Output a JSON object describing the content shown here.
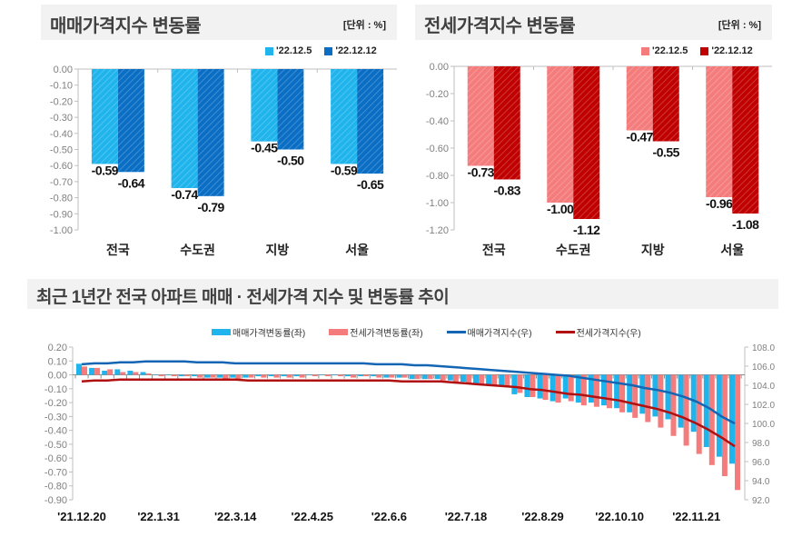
{
  "sale_panel": {
    "title": "매매가격지수 변동률",
    "unit": "[단위 : %]"
  },
  "jeonse_panel": {
    "title": "전세가격지수 변동률",
    "unit": "[단위 : %]"
  },
  "trend_panel": {
    "title": "최근 1년간 전국 아파트 매매 · 전세가격 지수 및 변동률 추이"
  },
  "colors": {
    "sale_light": "#1fb4ec",
    "sale_dark": "#0a6ec4",
    "jeonse_light": "#f47c7c",
    "jeonse_dark": "#c00000",
    "sale_index_line": "#1565b5",
    "jeonse_index_line": "#b01010"
  },
  "chart_data": [
    {
      "type": "bar",
      "title": "매매가격지수 변동률",
      "unit": "[단위 : %]",
      "categories": [
        "전국",
        "수도권",
        "지방",
        "서울"
      ],
      "series": [
        {
          "name": "'22.12.5",
          "values": [
            -0.59,
            -0.74,
            -0.45,
            -0.59
          ]
        },
        {
          "name": "'22.12.12",
          "values": [
            -0.64,
            -0.79,
            -0.5,
            -0.65
          ]
        }
      ],
      "ylim": [
        -1.0,
        0.0
      ],
      "yticks": [
        "0.00",
        "-0.10",
        "-0.20",
        "-0.30",
        "-0.40",
        "-0.50",
        "-0.60",
        "-0.70",
        "-0.80",
        "-0.90",
        "-1.00"
      ],
      "data_labels": true,
      "legend": "top-right",
      "grid": false
    },
    {
      "type": "bar",
      "title": "전세가격지수 변동률",
      "unit": "[단위 : %]",
      "categories": [
        "전국",
        "수도권",
        "지방",
        "서울"
      ],
      "series": [
        {
          "name": "'22.12.5",
          "values": [
            -0.73,
            -1.0,
            -0.47,
            -0.96
          ]
        },
        {
          "name": "'22.12.12",
          "values": [
            -0.83,
            -1.12,
            -0.55,
            -1.08
          ]
        }
      ],
      "ylim": [
        -1.2,
        0.0
      ],
      "yticks": [
        "0.00",
        "-0.20",
        "-0.40",
        "-0.60",
        "-0.80",
        "-1.00",
        "-1.20"
      ],
      "data_labels": true,
      "legend": "top-right",
      "grid": false
    },
    {
      "type": "bar+line",
      "title": "최근 1년간 전국 아파트 매매 · 전세가격 지수 및 변동률 추이",
      "x_tick_labels": [
        "'21.12.20",
        "'22.1.31",
        "'22.3.14",
        "'22.4.25",
        "'22.6.6",
        "'22.7.18",
        "'22.8.29",
        "'22.10.10",
        "'22.11.21"
      ],
      "x_tick_every": 6,
      "left_axis": {
        "ylim": [
          -0.9,
          0.2
        ],
        "yticks": [
          "0.20",
          "0.10",
          "0.00",
          "-0.10",
          "-0.20",
          "-0.30",
          "-0.40",
          "-0.50",
          "-0.60",
          "-0.70",
          "-0.80",
          "-0.90"
        ]
      },
      "right_axis": {
        "ylim": [
          92.0,
          108.0
        ],
        "yticks": [
          "108.0",
          "106.0",
          "104.0",
          "102.0",
          "100.0",
          "98.0",
          "96.0",
          "94.0",
          "92.0"
        ]
      },
      "legend": "top",
      "series": [
        {
          "name": "매매가격변동률(좌)",
          "kind": "bar",
          "axis": "left",
          "values": [
            0.08,
            0.05,
            0.03,
            0.04,
            0.03,
            0.02,
            0.0,
            0.0,
            -0.01,
            -0.01,
            -0.02,
            -0.02,
            -0.02,
            -0.02,
            -0.01,
            -0.01,
            -0.01,
            -0.01,
            0.0,
            0.0,
            0.0,
            -0.01,
            -0.01,
            -0.01,
            -0.02,
            -0.02,
            -0.03,
            -0.03,
            -0.03,
            -0.04,
            -0.05,
            -0.07,
            -0.07,
            -0.08,
            -0.14,
            -0.16,
            -0.17,
            -0.19,
            -0.17,
            -0.2,
            -0.2,
            -0.22,
            -0.24,
            -0.27,
            -0.28,
            -0.3,
            -0.32,
            -0.38,
            -0.41,
            -0.52,
            -0.59,
            -0.64
          ]
        },
        {
          "name": "전세가격변동률(좌)",
          "kind": "bar",
          "axis": "left",
          "values": [
            0.06,
            0.05,
            0.04,
            0.02,
            0.02,
            0.01,
            -0.01,
            -0.01,
            -0.01,
            -0.02,
            -0.02,
            -0.03,
            -0.03,
            -0.02,
            -0.02,
            -0.02,
            -0.02,
            -0.02,
            -0.01,
            -0.01,
            -0.01,
            -0.02,
            -0.01,
            -0.02,
            -0.02,
            -0.02,
            -0.03,
            -0.03,
            -0.04,
            -0.05,
            -0.06,
            -0.07,
            -0.08,
            -0.09,
            -0.13,
            -0.16,
            -0.18,
            -0.2,
            -0.19,
            -0.22,
            -0.23,
            -0.24,
            -0.27,
            -0.31,
            -0.34,
            -0.38,
            -0.44,
            -0.51,
            -0.57,
            -0.65,
            -0.73,
            -0.83
          ]
        },
        {
          "name": "매매가격지수(우)",
          "kind": "line",
          "axis": "right",
          "values": [
            106.2,
            106.3,
            106.3,
            106.4,
            106.4,
            106.5,
            106.5,
            106.5,
            106.5,
            106.4,
            106.4,
            106.4,
            106.3,
            106.3,
            106.3,
            106.3,
            106.3,
            106.3,
            106.3,
            106.3,
            106.3,
            106.3,
            106.3,
            106.2,
            106.2,
            106.2,
            106.1,
            106.1,
            106.0,
            105.9,
            105.8,
            105.7,
            105.6,
            105.5,
            105.4,
            105.3,
            105.2,
            105.1,
            105.0,
            104.8,
            104.6,
            104.4,
            104.2,
            104.0,
            103.7,
            103.5,
            103.2,
            102.8,
            102.3,
            101.6,
            100.7,
            100.0
          ]
        },
        {
          "name": "전세가격지수(우)",
          "kind": "line",
          "axis": "right",
          "values": [
            104.4,
            104.5,
            104.5,
            104.6,
            104.6,
            104.6,
            104.6,
            104.6,
            104.6,
            104.6,
            104.6,
            104.6,
            104.6,
            104.5,
            104.5,
            104.5,
            104.5,
            104.5,
            104.5,
            104.5,
            104.5,
            104.5,
            104.5,
            104.5,
            104.5,
            104.4,
            104.4,
            104.4,
            104.4,
            104.3,
            104.2,
            104.1,
            104.0,
            103.9,
            103.8,
            103.6,
            103.5,
            103.3,
            103.1,
            103.0,
            102.8,
            102.6,
            102.4,
            102.1,
            101.8,
            101.5,
            101.1,
            100.6,
            100.0,
            99.3,
            98.5,
            97.6
          ]
        }
      ]
    }
  ]
}
